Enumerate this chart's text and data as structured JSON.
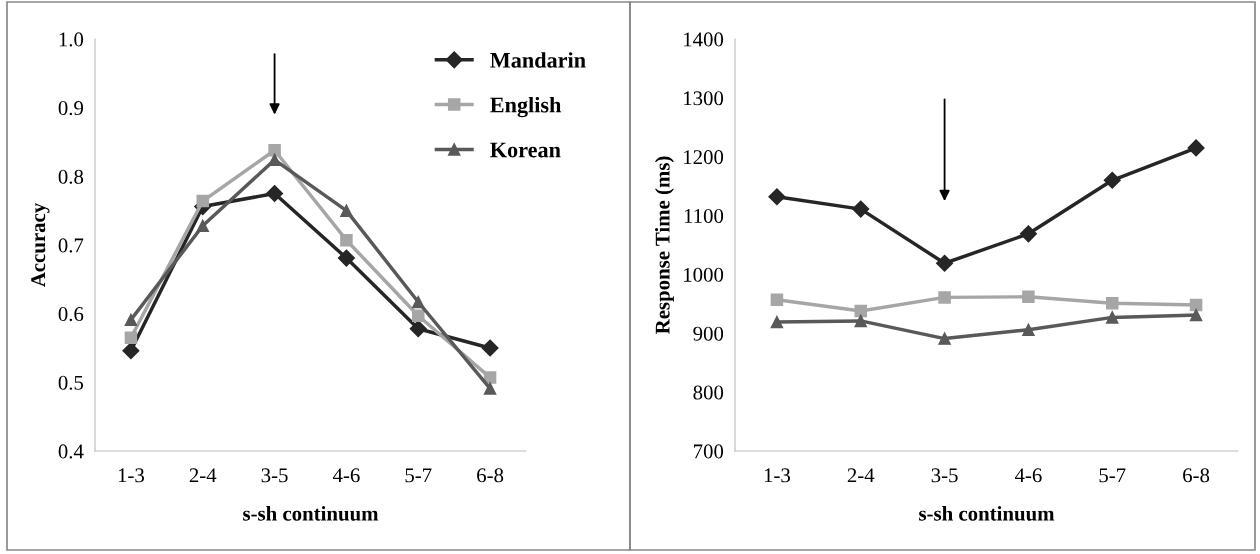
{
  "chart_data": [
    {
      "type": "line",
      "xlabel": "s-sh continuum",
      "ylabel": "Accuracy",
      "categories": [
        "1-3",
        "2-4",
        "3-5",
        "4-6",
        "5-7",
        "6-8"
      ],
      "ylim": [
        0.4,
        1.0
      ],
      "yticks": [
        {
          "value": 0.4,
          "label": "0.4"
        },
        {
          "value": 0.5,
          "label": "0.5"
        },
        {
          "value": 0.6,
          "label": "0.6"
        },
        {
          "value": 0.7,
          "label": "0.7"
        },
        {
          "value": 0.8,
          "label": "0.8"
        },
        {
          "value": 0.9,
          "label": "0.9"
        },
        {
          "value": 1.0,
          "label": "1.0"
        }
      ],
      "grid": false,
      "legend": "top right",
      "series": [
        {
          "name": "Mandarin",
          "color": "#262626",
          "marker": "diamond",
          "values": [
            0.546,
            0.756,
            0.775,
            0.681,
            0.578,
            0.55
          ]
        },
        {
          "name": "English",
          "color": "#a6a6a6",
          "marker": "square",
          "values": [
            0.565,
            0.764,
            0.838,
            0.707,
            0.597,
            0.507
          ]
        },
        {
          "name": "Korean",
          "color": "#595959",
          "marker": "triangle",
          "values": [
            0.591,
            0.728,
            0.824,
            0.75,
            0.617,
            0.491
          ]
        }
      ]
    },
    {
      "type": "line",
      "xlabel": "s-sh continuum",
      "ylabel": "Response Time (ms)",
      "categories": [
        "1-3",
        "2-4",
        "3-5",
        "4-6",
        "5-7",
        "6-8"
      ],
      "ylim": [
        700,
        1400
      ],
      "yticks": [
        700,
        800,
        900,
        1000,
        1100,
        1200,
        1300,
        1400
      ],
      "grid": false,
      "series": [
        {
          "color": "#262626",
          "marker": "diamond",
          "values": [
            1132,
            1111,
            1019,
            1069,
            1160,
            1215
          ]
        },
        {
          "color": "#a6a6a6",
          "marker": "square",
          "values": [
            957,
            938,
            961,
            962,
            951,
            948
          ]
        },
        {
          "color": "#595959",
          "marker": "triangle",
          "values": [
            919,
            921,
            891,
            906,
            927,
            931
          ]
        }
      ]
    }
  ]
}
